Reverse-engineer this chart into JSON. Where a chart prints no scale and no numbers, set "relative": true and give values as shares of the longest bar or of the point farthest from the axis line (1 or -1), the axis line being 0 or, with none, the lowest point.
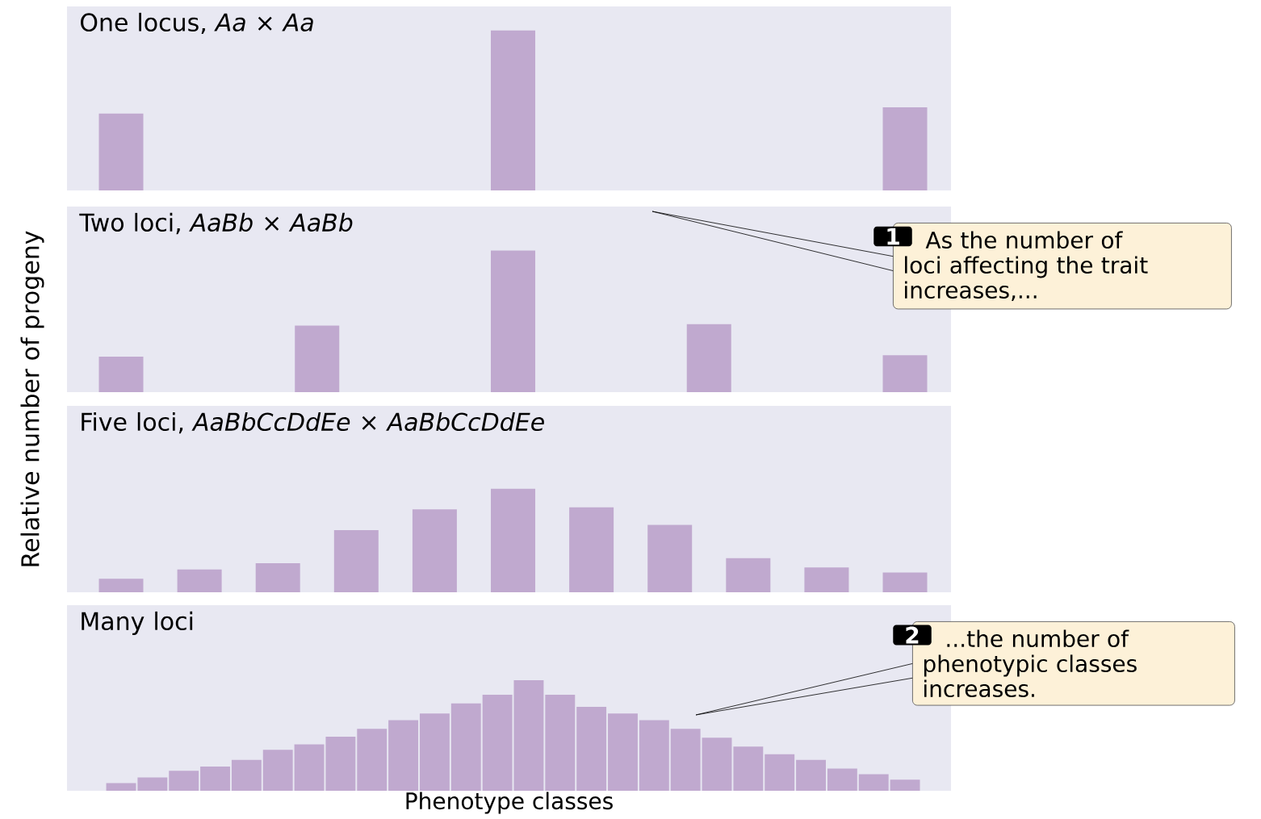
{
  "chart_data": [
    {
      "type": "bar",
      "relative": true,
      "title": "One locus, *Aa* × *Aa*",
      "ylabel": "Relative number of progeny",
      "color": "#c0a9cf",
      "categories": [
        null,
        null,
        null
      ],
      "values": [
        0.48,
        1,
        0.52
      ]
    },
    {
      "type": "bar",
      "relative": true,
      "title": "Two loci, *AaBb* × *AaBb*",
      "color": "#c0a9cf",
      "categories": [
        null,
        null,
        null,
        null,
        null
      ],
      "values": [
        0.25,
        0.47,
        1,
        0.48,
        0.26
      ],
      "annotations": [
        "1",
        "As the number of loci affecting the trait increases,..."
      ]
    },
    {
      "type": "bar",
      "relative": true,
      "title": "Five loci, *AaBbCcDdEe* × *AaBbCcDdEe*",
      "color": "#c0a9cf",
      "categories": [
        null,
        null,
        null,
        null,
        null,
        null,
        null,
        null,
        null,
        null,
        null
      ],
      "values": [
        0.13,
        0.22,
        0.28,
        0.6,
        0.8,
        1,
        0.82,
        0.65,
        0.33,
        0.24,
        0.19
      ]
    },
    {
      "type": "bar",
      "relative": true,
      "title": "Many loci",
      "xlabel": "Phenotype classes",
      "color": "#c0a9cf",
      "categories": [
        null,
        null,
        null,
        null,
        null,
        null,
        null,
        null,
        null,
        null,
        null,
        null,
        null,
        null,
        null,
        null,
        null,
        null,
        null,
        null,
        null,
        null,
        null,
        null,
        null,
        null
      ],
      "values": [
        0.07,
        0.12,
        0.18,
        0.22,
        0.28,
        0.37,
        0.42,
        0.49,
        0.56,
        0.64,
        0.7,
        0.79,
        0.87,
        1,
        0.87,
        0.76,
        0.7,
        0.64,
        0.56,
        0.48,
        0.4,
        0.33,
        0.28,
        0.2,
        0.15,
        0.1
      ],
      "annotations": [
        "2",
        "...the number of phenotypic classes increases."
      ]
    }
  ]
}
